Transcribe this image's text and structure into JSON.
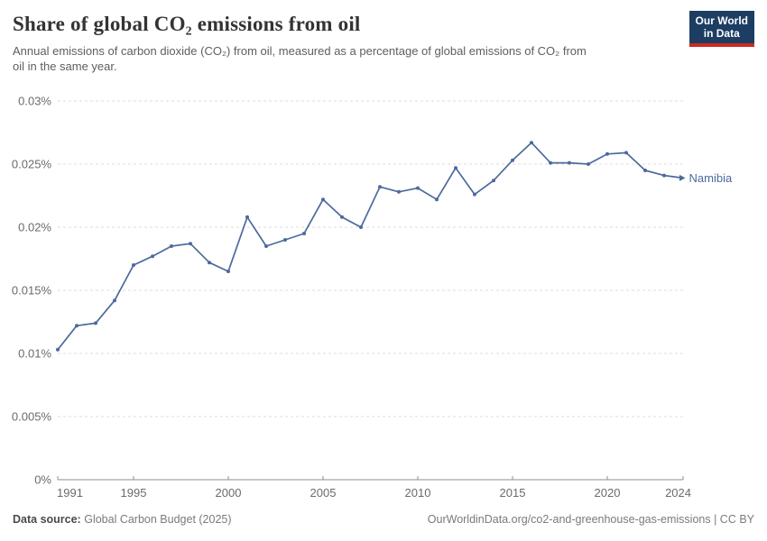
{
  "header": {
    "title": "Share of global CO₂ emissions from oil",
    "subtitle": "Annual emissions of carbon dioxide (CO₂) from oil, measured as a percentage of global emissions of CO₂ from\noil in the same year."
  },
  "logo": {
    "line1": "Our World",
    "line2": "in Data"
  },
  "chart_data": {
    "type": "line",
    "title": "Share of global CO₂ emissions from oil",
    "xlabel": "",
    "ylabel": "",
    "unit": "%",
    "xlim": [
      1991,
      2024
    ],
    "ylim": [
      0,
      0.03
    ],
    "grid": "horizontal-dashed",
    "legend_position": "end-of-line-label",
    "xticks": [
      1991,
      1995,
      2000,
      2005,
      2010,
      2015,
      2020,
      2024
    ],
    "yticks": [
      {
        "value": 0,
        "label": "0%"
      },
      {
        "value": 0.005,
        "label": "0.005%"
      },
      {
        "value": 0.01,
        "label": "0.01%"
      },
      {
        "value": 0.015,
        "label": "0.015%"
      },
      {
        "value": 0.02,
        "label": "0.02%"
      },
      {
        "value": 0.025,
        "label": "0.025%"
      },
      {
        "value": 0.03,
        "label": "0.03%"
      }
    ],
    "series": [
      {
        "name": "Namibia",
        "x": [
          1991,
          1992,
          1993,
          1994,
          1995,
          1996,
          1997,
          1998,
          1999,
          2000,
          2001,
          2002,
          2003,
          2004,
          2005,
          2006,
          2007,
          2008,
          2009,
          2010,
          2011,
          2012,
          2013,
          2014,
          2015,
          2016,
          2017,
          2018,
          2019,
          2020,
          2021,
          2022,
          2023,
          2024
        ],
        "values": [
          0.0103,
          0.0122,
          0.0124,
          0.0142,
          0.017,
          0.0177,
          0.0185,
          0.0187,
          0.0172,
          0.0165,
          0.0208,
          0.0185,
          0.019,
          0.0195,
          0.0222,
          0.0208,
          0.02,
          0.0232,
          0.0228,
          0.0231,
          0.0222,
          0.0247,
          0.0226,
          0.0237,
          0.0253,
          0.0267,
          0.0251,
          0.0251,
          0.025,
          0.0258,
          0.0259,
          0.0245,
          0.0241,
          0.0239
        ]
      }
    ]
  },
  "footer": {
    "datasource_label": "Data source:",
    "datasource_value": "Global Carbon Budget (2025)",
    "citation": "OurWorldinData.org/co2-and-greenhouse-gas-emissions | CC BY"
  },
  "colors": {
    "line": "#4c6a9c",
    "series_label": "#4c6a9c",
    "grid": "#dcdcdc",
    "axis": "#8f8f8f",
    "tick_text": "#6b6b6b",
    "logo_navy": "#1d3d63",
    "logo_red": "#cc2a22"
  }
}
